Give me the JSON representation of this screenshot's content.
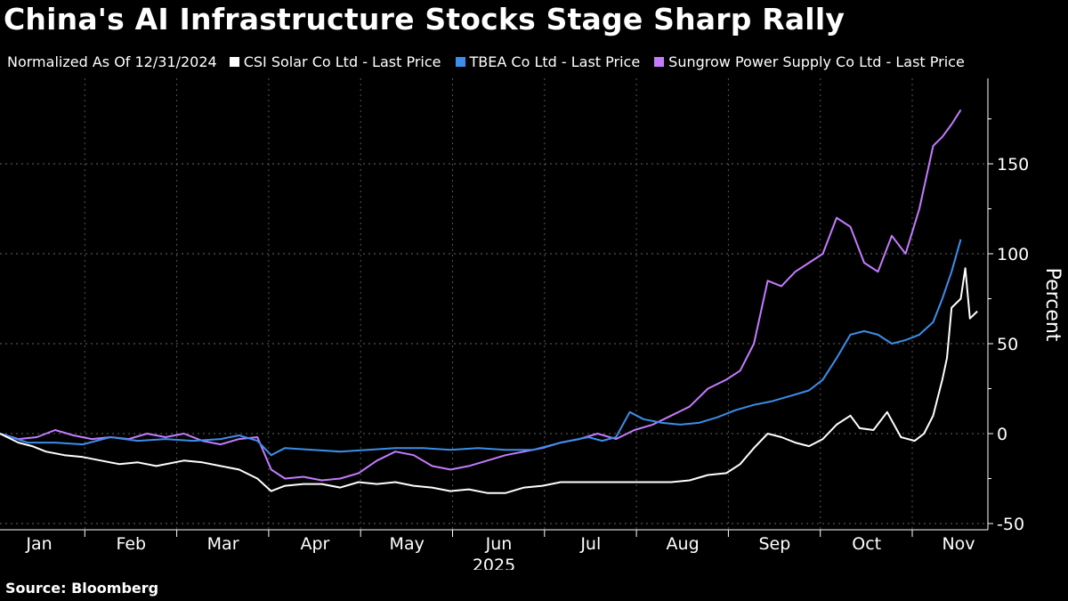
{
  "title": "China's AI Infrastructure Stocks Stage Sharp Rally",
  "legend": {
    "note": "Normalized As Of 12/31/2024",
    "items": [
      {
        "label": "CSI Solar Co Ltd - Last Price",
        "color": "#ffffff"
      },
      {
        "label": "TBEA Co Ltd - Last Price",
        "color": "#3b8eea"
      },
      {
        "label": "Sungrow Power Supply Co Ltd - Last Price",
        "color": "#c57bff"
      }
    ]
  },
  "source": "Source: Bloomberg",
  "chart_data": {
    "type": "line",
    "title": "China's AI Infrastructure Stocks Stage Sharp Rally",
    "xlabel": "2025",
    "ylabel": "Percent",
    "ylim": [
      -50,
      190
    ],
    "yticks": [
      -50,
      0,
      50,
      100,
      150
    ],
    "xlim": [
      0,
      10.5
    ],
    "months": [
      "Jan",
      "Feb",
      "Mar",
      "Apr",
      "May",
      "Jun",
      "Jul",
      "Aug",
      "Sep",
      "Oct",
      "Nov"
    ],
    "year_label": "2025",
    "grid": true,
    "x_note": "x values are months elapsed since 12/31/2024",
    "series": [
      {
        "name": "CSI Solar Co Ltd - Last Price",
        "color": "#ffffff",
        "x": [
          0,
          0.2,
          0.35,
          0.5,
          0.7,
          0.9,
          1.1,
          1.3,
          1.5,
          1.7,
          2.0,
          2.2,
          2.4,
          2.6,
          2.8,
          2.95,
          3.1,
          3.3,
          3.5,
          3.7,
          3.9,
          4.1,
          4.3,
          4.5,
          4.7,
          4.9,
          5.1,
          5.3,
          5.5,
          5.7,
          5.9,
          6.1,
          6.3,
          6.5,
          6.7,
          6.9,
          7.1,
          7.3,
          7.5,
          7.7,
          7.9,
          8.05,
          8.2,
          8.35,
          8.5,
          8.65,
          8.8,
          8.95,
          9.1,
          9.25,
          9.35,
          9.5,
          9.65,
          9.8,
          9.95,
          10.05,
          10.15,
          10.25,
          10.3,
          10.35,
          10.45,
          10.5
        ],
        "y": [
          0,
          -5,
          -7,
          -10,
          -12,
          -13,
          -15,
          -17,
          -16,
          -18,
          -15,
          -16,
          -18,
          -20,
          -25,
          -32,
          -29,
          -28,
          -28,
          -30,
          -27,
          -28,
          -27,
          -29,
          -30,
          -32,
          -31,
          -33,
          -33,
          -30,
          -29,
          -27,
          -27,
          -27,
          -27,
          -27,
          -27,
          -27,
          -26,
          -23,
          -22,
          -17,
          -8,
          0,
          -2,
          -5,
          -7,
          -3,
          5,
          10,
          3,
          2,
          12,
          -2,
          -4,
          0,
          10,
          30,
          42,
          70,
          75,
          92
        ],
        "tail": [
          {
            "x": 10.55,
            "y": 64
          },
          {
            "x": 10.63,
            "y": 68
          }
        ]
      },
      {
        "name": "TBEA Co Ltd - Last Price",
        "color": "#3b8eea",
        "x": [
          0,
          0.3,
          0.6,
          0.9,
          1.2,
          1.5,
          1.8,
          2.1,
          2.4,
          2.6,
          2.8,
          2.95,
          3.1,
          3.4,
          3.7,
          4.0,
          4.3,
          4.6,
          4.9,
          5.2,
          5.5,
          5.8,
          6.1,
          6.4,
          6.55,
          6.7,
          6.85,
          7.0,
          7.2,
          7.4,
          7.6,
          7.8,
          8.0,
          8.2,
          8.4,
          8.6,
          8.8,
          8.95,
          9.1,
          9.25,
          9.4,
          9.55,
          9.7,
          9.85,
          10.0,
          10.15,
          10.25,
          10.35,
          10.45
        ],
        "y": [
          0,
          -5,
          -5,
          -6,
          -2,
          -4,
          -3,
          -4,
          -3,
          -1,
          -4,
          -12,
          -8,
          -9,
          -10,
          -9,
          -8,
          -8,
          -9,
          -8,
          -9,
          -9,
          -5,
          -2,
          -4,
          -2,
          12,
          8,
          6,
          5,
          6,
          9,
          13,
          16,
          18,
          21,
          24,
          30,
          42,
          55,
          57,
          55,
          50,
          52,
          55,
          62,
          75,
          90,
          108
        ]
      },
      {
        "name": "Sungrow Power Supply Co Ltd - Last Price",
        "color": "#c57bff",
        "x": [
          0,
          0.2,
          0.4,
          0.6,
          0.8,
          1.0,
          1.2,
          1.4,
          1.6,
          1.8,
          2.0,
          2.2,
          2.4,
          2.6,
          2.8,
          2.95,
          3.1,
          3.3,
          3.5,
          3.7,
          3.9,
          4.1,
          4.3,
          4.5,
          4.7,
          4.9,
          5.1,
          5.3,
          5.5,
          5.7,
          5.9,
          6.1,
          6.3,
          6.5,
          6.7,
          6.9,
          7.1,
          7.3,
          7.5,
          7.7,
          7.9,
          8.05,
          8.2,
          8.35,
          8.5,
          8.65,
          8.8,
          8.95,
          9.1,
          9.25,
          9.4,
          9.55,
          9.7,
          9.85,
          10.0,
          10.15,
          10.25,
          10.35,
          10.45
        ],
        "y": [
          0,
          -3,
          -2,
          2,
          -1,
          -3,
          -2,
          -3,
          0,
          -2,
          0,
          -4,
          -6,
          -3,
          -2,
          -20,
          -25,
          -24,
          -26,
          -25,
          -22,
          -15,
          -10,
          -12,
          -18,
          -20,
          -18,
          -15,
          -12,
          -10,
          -8,
          -5,
          -3,
          0,
          -3,
          2,
          5,
          10,
          15,
          25,
          30,
          35,
          50,
          85,
          82,
          90,
          95,
          100,
          120,
          115,
          95,
          90,
          110,
          100,
          125,
          160,
          165,
          172,
          180
        ]
      }
    ]
  }
}
